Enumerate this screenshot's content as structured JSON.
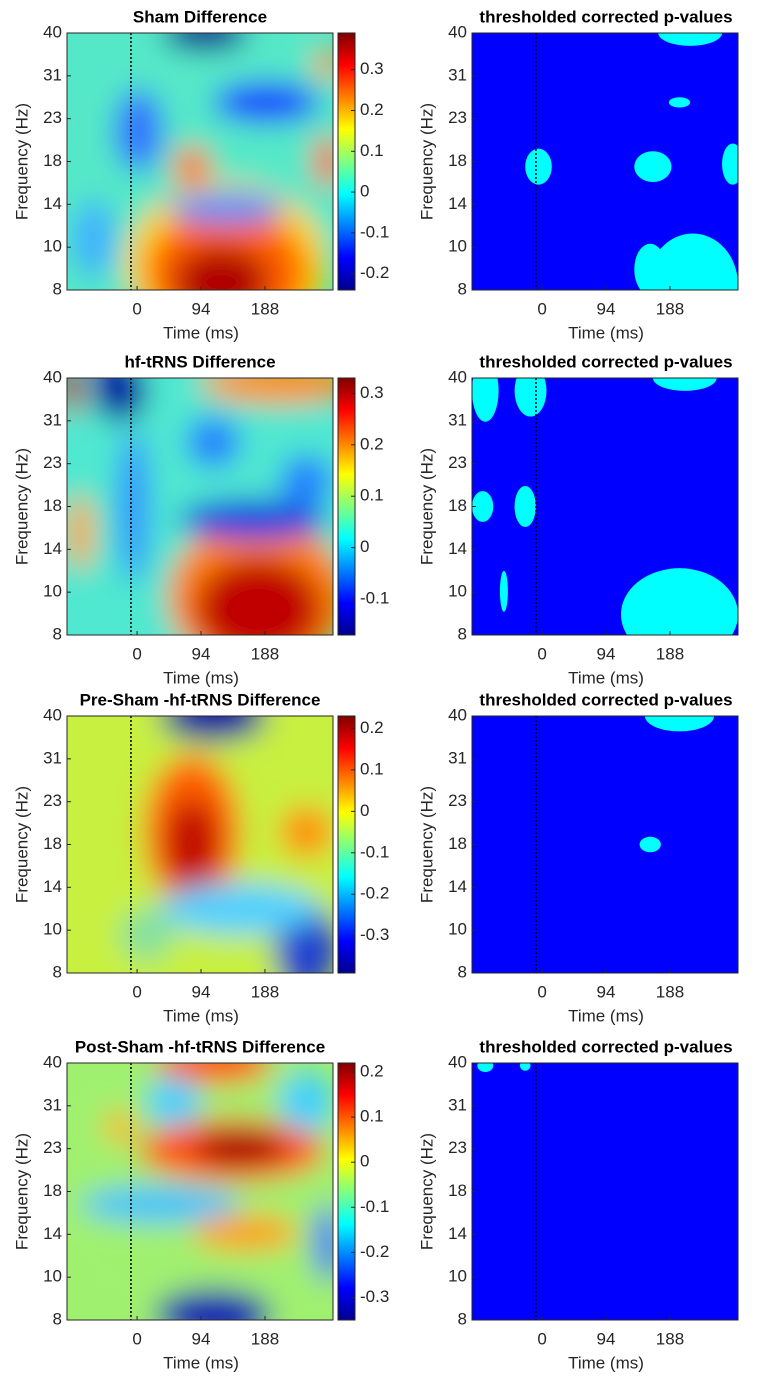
{
  "chart_data": [
    {
      "type": "heatmap",
      "title": "Sham Difference",
      "xlabel": "Time (ms)",
      "ylabel": "Frequency (Hz)",
      "xlim": [
        -103,
        288
      ],
      "xticks": [
        0,
        94,
        188
      ],
      "yticks": [
        8,
        10,
        14,
        18,
        23,
        31,
        40
      ],
      "vline": -9,
      "colormap": "jet",
      "clim": [
        -0.24,
        0.39
      ],
      "cticks": [
        -0.2,
        -0.1,
        0,
        0.1,
        0.2,
        0.3
      ]
    },
    {
      "type": "heatmap",
      "title": "thresholded corrected p-values",
      "xlabel": "Time (ms)",
      "ylabel": "Frequency (Hz)",
      "xlim": [
        -103,
        288
      ],
      "xticks": [
        0,
        94,
        188
      ],
      "yticks": [
        8,
        10,
        14,
        18,
        23,
        31,
        40
      ],
      "vline": -9,
      "colors": [
        "#0000ff",
        "#00ffff"
      ]
    },
    {
      "type": "heatmap",
      "title": "hf-tRNS Difference",
      "xlabel": "Time (ms)",
      "ylabel": "Frequency (Hz)",
      "xlim": [
        -103,
        288
      ],
      "xticks": [
        0,
        94,
        188
      ],
      "yticks": [
        8,
        10,
        14,
        18,
        23,
        31,
        40
      ],
      "vline": -9,
      "colormap": "jet",
      "clim": [
        -0.17,
        0.33
      ],
      "cticks": [
        -0.1,
        0,
        0.1,
        0.2,
        0.3
      ]
    },
    {
      "type": "heatmap",
      "title": "thresholded corrected p-values",
      "xlabel": "Time (ms)",
      "ylabel": "Frequency (Hz)",
      "xlim": [
        -103,
        288
      ],
      "xticks": [
        0,
        94,
        188
      ],
      "yticks": [
        8,
        10,
        14,
        18,
        23,
        31,
        40
      ],
      "vline": -9,
      "colors": [
        "#0000ff",
        "#00ffff"
      ]
    },
    {
      "type": "heatmap",
      "title": "Pre-Sham -hf-tRNS Difference",
      "xlabel": "Time (ms)",
      "ylabel": "Frequency (Hz)",
      "xlim": [
        -103,
        288
      ],
      "xticks": [
        0,
        94,
        188
      ],
      "yticks": [
        8,
        10,
        14,
        18,
        23,
        31,
        40
      ],
      "vline": -9,
      "colormap": "jet",
      "clim": [
        -0.39,
        0.23
      ],
      "cticks": [
        -0.3,
        -0.2,
        -0.1,
        0,
        0.1,
        0.2
      ]
    },
    {
      "type": "heatmap",
      "title": "thresholded corrected p-values",
      "xlabel": "Time (ms)",
      "ylabel": "Frequency (Hz)",
      "xlim": [
        -103,
        288
      ],
      "xticks": [
        0,
        94,
        188
      ],
      "yticks": [
        8,
        10,
        14,
        18,
        23,
        31,
        40
      ],
      "vline": -9,
      "colors": [
        "#0000ff",
        "#00ffff"
      ]
    },
    {
      "type": "heatmap",
      "title": "Post-Sham -hf-tRNS Difference",
      "xlabel": "Time (ms)",
      "ylabel": "Frequency (Hz)",
      "xlim": [
        -103,
        288
      ],
      "xticks": [
        0,
        94,
        188
      ],
      "yticks": [
        8,
        10,
        14,
        18,
        23,
        31,
        40
      ],
      "vline": -9,
      "colormap": "jet",
      "clim": [
        -0.35,
        0.22
      ],
      "cticks": [
        -0.3,
        -0.2,
        -0.1,
        0,
        0.1,
        0.2
      ]
    },
    {
      "type": "heatmap",
      "title": "thresholded corrected p-values",
      "xlabel": "Time (ms)",
      "ylabel": "Frequency (Hz)",
      "xlim": [
        -103,
        288
      ],
      "xticks": [
        0,
        94,
        188
      ],
      "yticks": [
        8,
        10,
        14,
        18,
        23,
        31,
        40
      ],
      "vline": -9,
      "colors": [
        "#0000ff",
        "#00ffff"
      ]
    }
  ]
}
